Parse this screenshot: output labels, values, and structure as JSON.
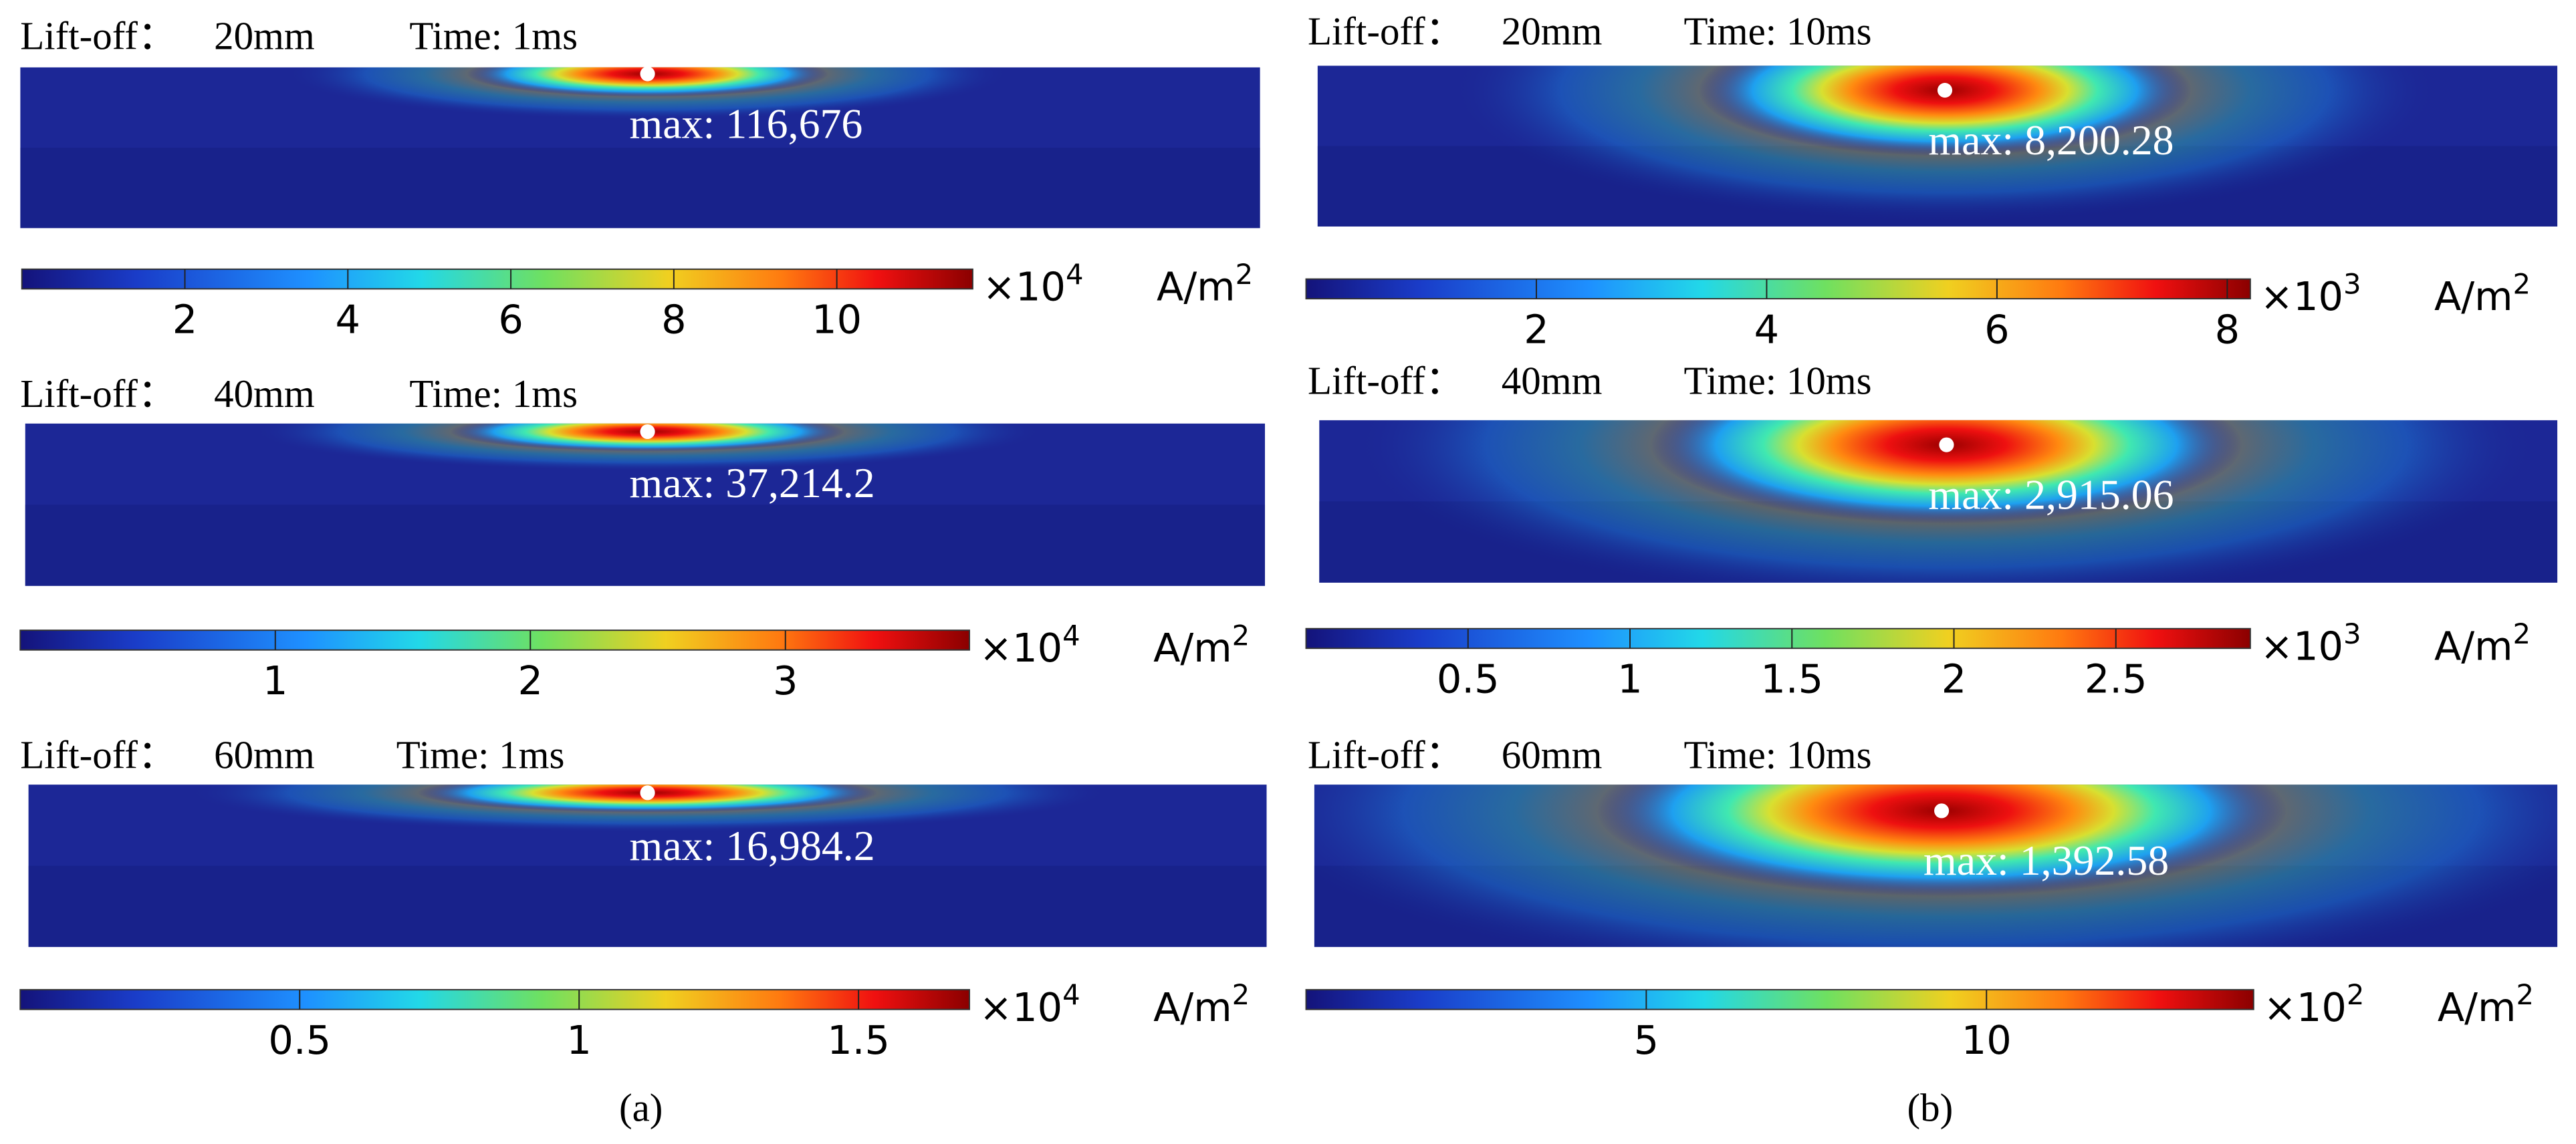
{
  "panels": [
    {
      "label": "Lift-off：",
      "lift_off": "20mm",
      "time": "Time: 1ms",
      "max_label": "max: 116,676",
      "colorbar": {
        "lim": [
          0,
          11.6676
        ],
        "ticks": [
          2,
          4,
          6,
          8,
          10
        ],
        "multiplier": "×10",
        "exponent": "4",
        "unit": "A/m",
        "unit_exponent": "2"
      }
    },
    {
      "label": "Lift-off：",
      "lift_off": "40mm",
      "time": "Time: 1ms",
      "max_label": "max: 37,214.2",
      "colorbar": {
        "lim": [
          0,
          3.72142
        ],
        "ticks": [
          1,
          2,
          3
        ],
        "multiplier": "×10",
        "exponent": "4",
        "unit": "A/m",
        "unit_exponent": "2"
      }
    },
    {
      "label": "Lift-off：",
      "lift_off": "60mm",
      "time": "Time: 1ms",
      "max_label": "max: 16,984.2",
      "colorbar": {
        "lim": [
          0,
          1.69842
        ],
        "ticks": [
          0.5,
          1,
          1.5
        ],
        "multiplier": "×10",
        "exponent": "4",
        "unit": "A/m",
        "unit_exponent": "2"
      }
    },
    {
      "label": "Lift-off：",
      "lift_off": "20mm",
      "time": "Time: 10ms",
      "max_label": "max: 8,200.28",
      "colorbar": {
        "lim": [
          0,
          8.20028
        ],
        "ticks": [
          2,
          4,
          6,
          8
        ],
        "multiplier": "×10",
        "exponent": "3",
        "unit": "A/m",
        "unit_exponent": "2"
      }
    },
    {
      "label": "Lift-off：",
      "lift_off": "40mm",
      "time": "Time: 10ms",
      "max_label": "max: 2,915.06",
      "colorbar": {
        "lim": [
          0,
          2.91506
        ],
        "ticks": [
          0.5,
          1,
          1.5,
          2,
          2.5
        ],
        "multiplier": "×10",
        "exponent": "3",
        "unit": "A/m",
        "unit_exponent": "2"
      }
    },
    {
      "label": "Lift-off：",
      "lift_off": "60mm",
      "time": "Time: 10ms",
      "max_label": "max: 1,392.58",
      "colorbar": {
        "lim": [
          0,
          13.9258
        ],
        "ticks": [
          5,
          10
        ],
        "multiplier": "×10",
        "exponent": "2",
        "unit": "A/m",
        "unit_exponent": "2"
      }
    }
  ],
  "captions": [
    "(a)",
    "(b)"
  ]
}
